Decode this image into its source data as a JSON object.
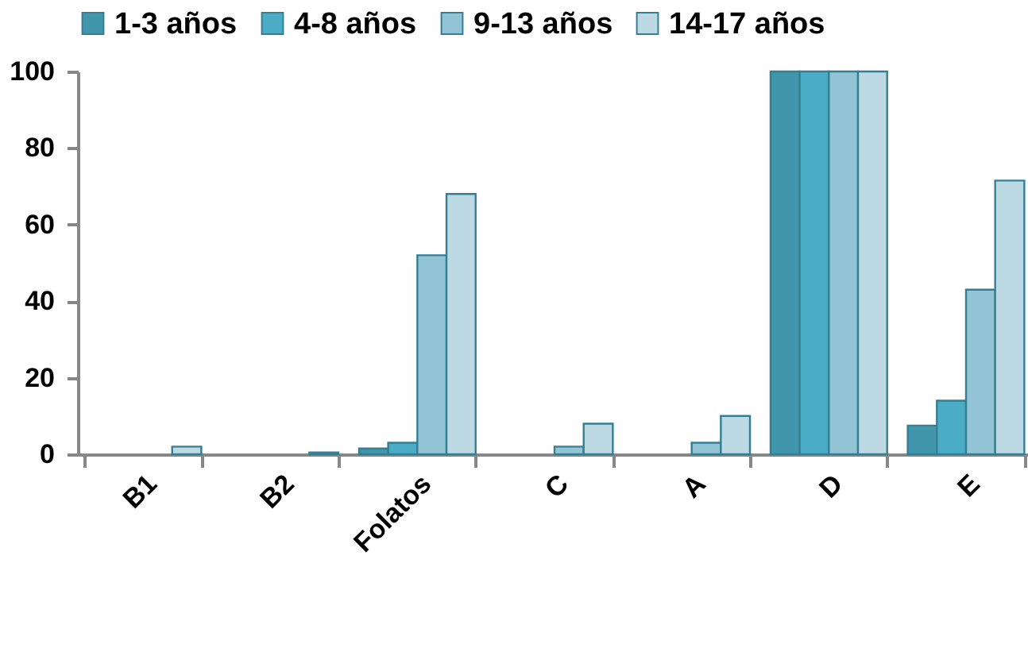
{
  "chart_data": {
    "type": "bar",
    "categories": [
      "B1",
      "B2",
      "Folatos",
      "C",
      "A",
      "D",
      "E"
    ],
    "series": [
      {
        "name": "1-3 años",
        "color": "#4196ab",
        "values": [
          0,
          0,
          1.5,
          0,
          0,
          100,
          7.5
        ]
      },
      {
        "name": "4-8 años",
        "color": "#4bacc6",
        "values": [
          0,
          0,
          3,
          0,
          0,
          100,
          14
        ]
      },
      {
        "name": "9-13 años",
        "color": "#93c4d5",
        "values": [
          0,
          0,
          52,
          2,
          3,
          100,
          43
        ]
      },
      {
        "name": "14-17 años",
        "color": "#bcd9e4",
        "values": [
          2,
          0.5,
          68,
          8,
          10,
          100,
          71.5
        ]
      }
    ],
    "ylim": [
      0,
      100
    ],
    "yticks": [
      0,
      20,
      40,
      60,
      80,
      100
    ],
    "grid": false,
    "legend": "top"
  }
}
